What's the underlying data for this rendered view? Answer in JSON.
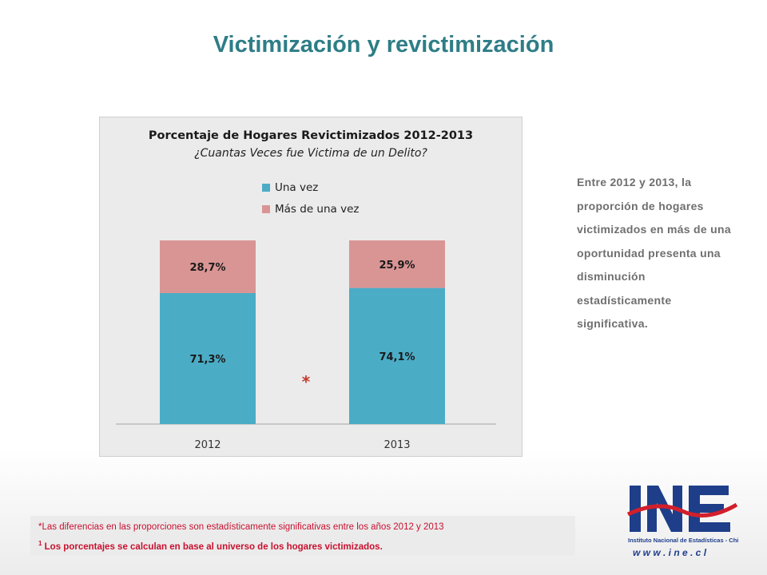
{
  "slide": {
    "title": "Victimización y revictimización",
    "side_text": "Entre 2012 y 2013, la proporción de hogares victimizados en más de una oportunidad presenta una disminución estadísticamente significativa.",
    "notes": {
      "note1": "*Las diferencias en las proporciones son estadísticamente  significativas entre los años 2012 y 2013",
      "note2_sup": "1",
      "note2": "Los porcentajes se calculan en base al universo de los hogares victimizados."
    },
    "logo": {
      "text": "INE",
      "subtitle": "Instituto Nacional de Estadísticas - Chile",
      "url": "w w w . i n e . c l"
    }
  },
  "chart_data": {
    "type": "bar",
    "stacked": true,
    "title": "Porcentaje de Hogares Revictimizados 2012-2013",
    "subtitle": "¿Cuantas Veces fue Victima de un Delito?",
    "categories": [
      "2012",
      "2013"
    ],
    "series": [
      {
        "name": "Una vez",
        "values": [
          71.3,
          74.1
        ],
        "labels": [
          "71,3%",
          "74,1%"
        ],
        "color": "#4bacc6"
      },
      {
        "name": "Más de una vez",
        "values": [
          28.7,
          25.9
        ],
        "labels": [
          "28,7%",
          "25,9%"
        ],
        "color": "#d99594"
      }
    ],
    "ylim": [
      0,
      100
    ],
    "legend_position": "top",
    "grid": false,
    "significance_marker": "*",
    "significance_color": "#c0392b"
  }
}
